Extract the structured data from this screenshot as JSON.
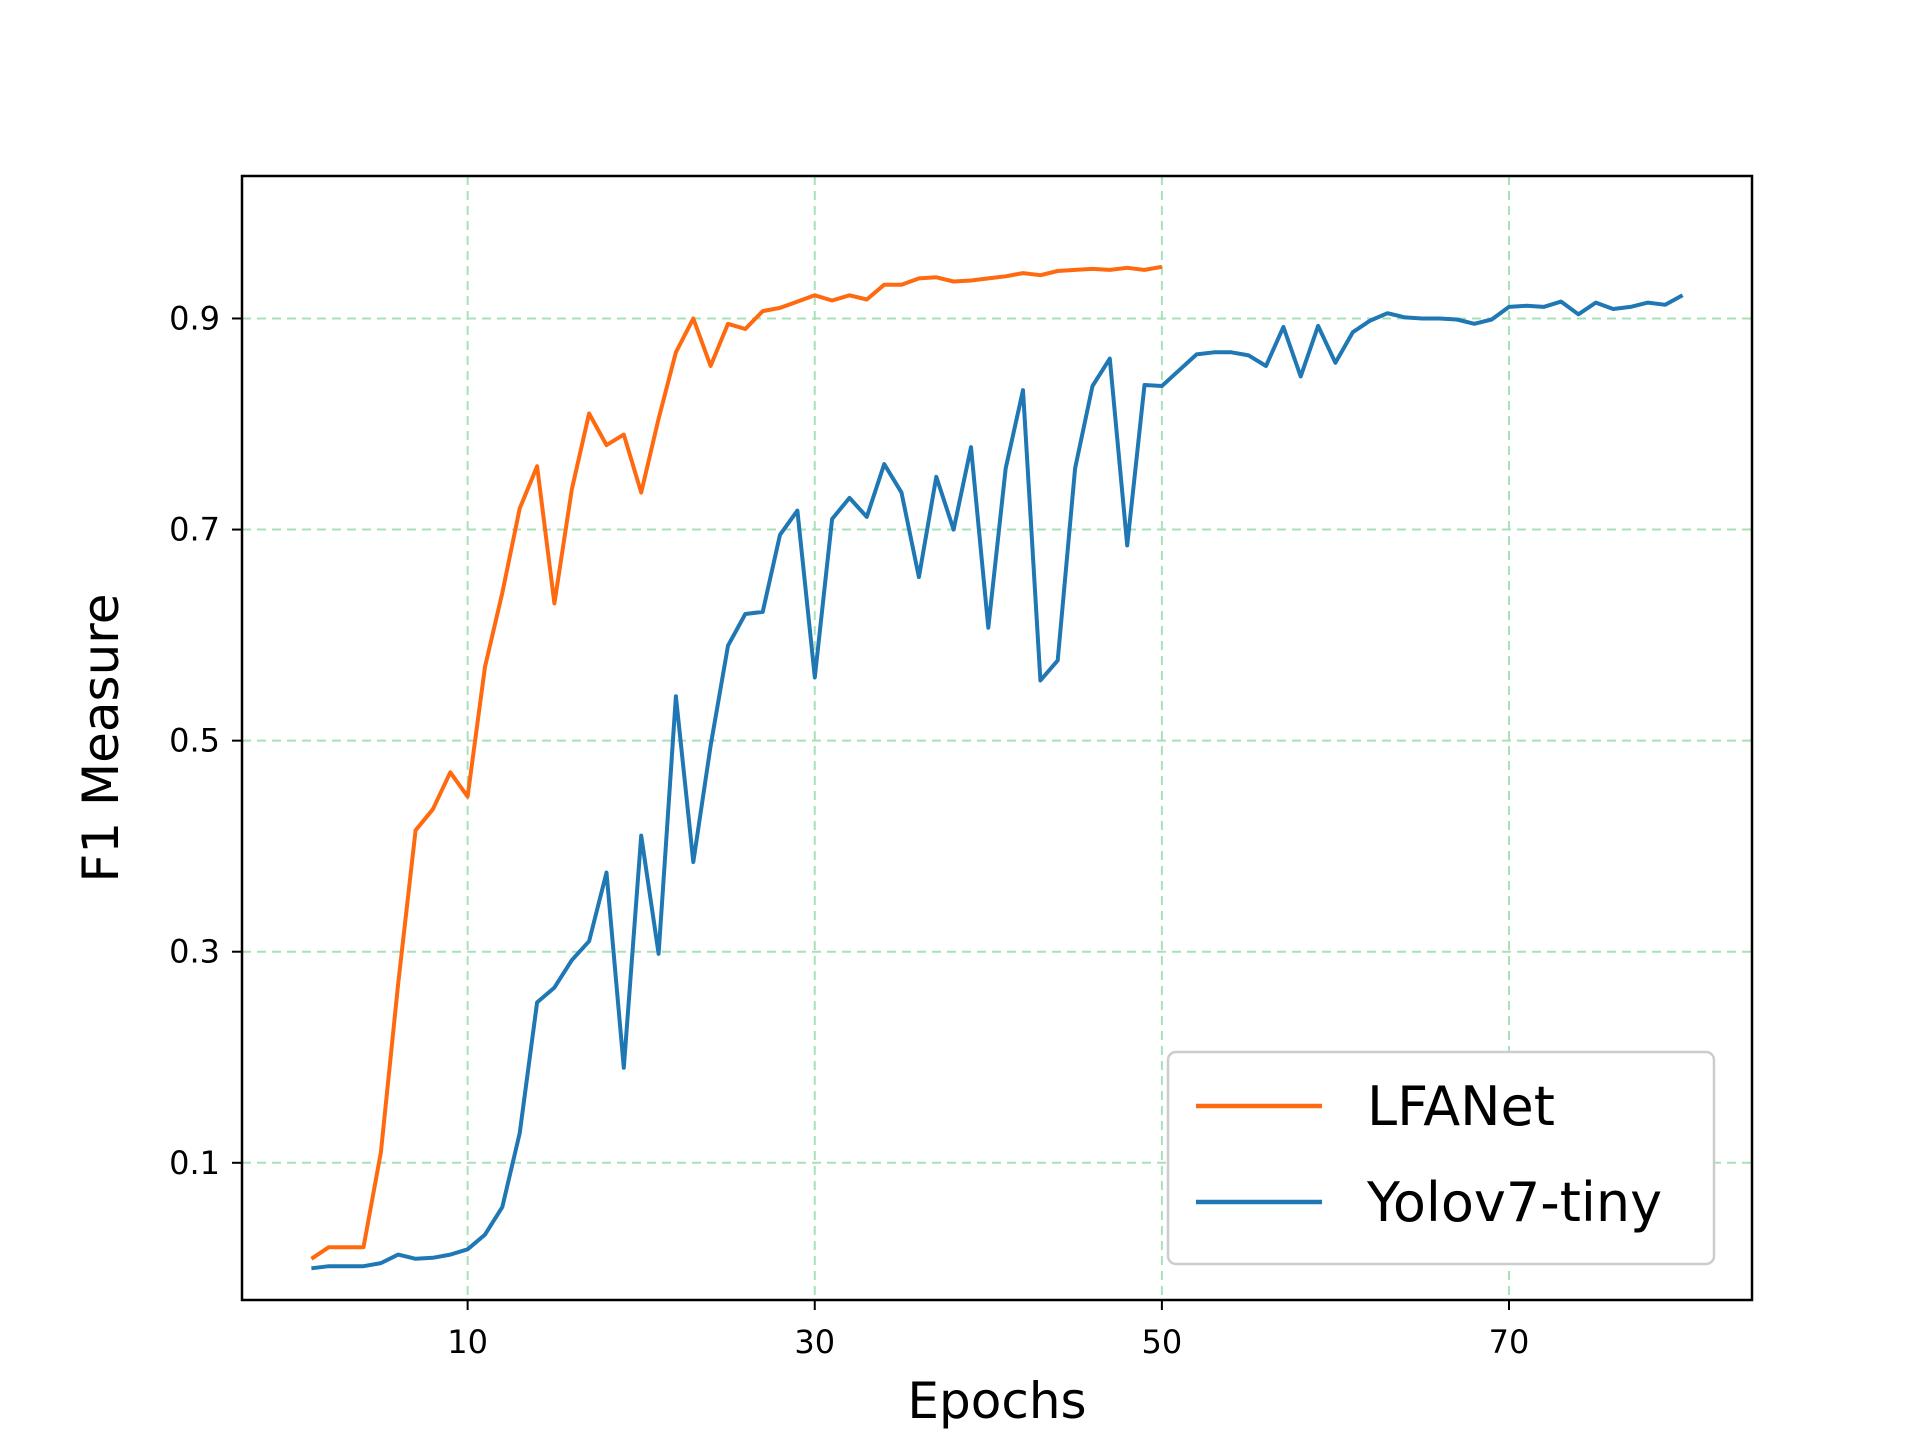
{
  "chart_data": {
    "type": "line",
    "xlabel": "Epochs",
    "ylabel": "F1 Measure",
    "xlim": [
      -3,
      84
    ],
    "ylim": [
      -0.03,
      1.035
    ],
    "xticks": [
      "10",
      "30",
      "50",
      "70"
    ],
    "yticks": [
      "0.1",
      "0.3",
      "0.5",
      "0.7",
      "0.9"
    ],
    "grid": true,
    "grid_color": "#a8e0b8",
    "legend_position": "lower right",
    "series": [
      {
        "name": "LFANet",
        "color": "#ff6a10",
        "x": [
          1,
          2,
          3,
          4,
          5,
          6,
          7,
          8,
          9,
          10,
          11,
          12,
          13,
          14,
          15,
          16,
          17,
          18,
          19,
          20,
          21,
          22,
          23,
          24,
          25,
          26,
          27,
          28,
          29,
          30,
          31,
          32,
          33,
          34,
          35,
          36,
          37,
          38,
          39,
          40,
          41,
          42,
          43,
          44,
          45,
          46,
          47,
          48,
          49,
          50
        ],
        "y": [
          0.009,
          0.02,
          0.02,
          0.02,
          0.11,
          0.27,
          0.415,
          0.435,
          0.47,
          0.447,
          0.57,
          0.64,
          0.72,
          0.76,
          0.63,
          0.738,
          0.81,
          0.78,
          0.79,
          0.735,
          0.805,
          0.868,
          0.9,
          0.855,
          0.895,
          0.89,
          0.907,
          0.91,
          0.916,
          0.922,
          0.917,
          0.922,
          0.918,
          0.932,
          0.932,
          0.938,
          0.939,
          0.935,
          0.936,
          0.938,
          0.94,
          0.943,
          0.941,
          0.945,
          0.946,
          0.947,
          0.946,
          0.948,
          0.946,
          0.949
        ]
      },
      {
        "name": "Yolov7-tiny",
        "color": "#1f77b4",
        "x": [
          1,
          2,
          3,
          4,
          5,
          6,
          7,
          8,
          9,
          10,
          11,
          12,
          13,
          14,
          15,
          16,
          17,
          18,
          19,
          20,
          21,
          22,
          23,
          24,
          25,
          26,
          27,
          28,
          29,
          30,
          31,
          32,
          33,
          34,
          35,
          36,
          37,
          38,
          39,
          40,
          41,
          42,
          43,
          44,
          45,
          46,
          47,
          48,
          49,
          50,
          51,
          52,
          53,
          54,
          55,
          56,
          57,
          58,
          59,
          60,
          61,
          62,
          63,
          64,
          65,
          66,
          67,
          68,
          69,
          70,
          71,
          72,
          73,
          74,
          75,
          76,
          77,
          78,
          79,
          80
        ],
        "y": [
          0.0,
          0.002,
          0.002,
          0.002,
          0.005,
          0.013,
          0.009,
          0.01,
          0.013,
          0.018,
          0.032,
          0.058,
          0.128,
          0.252,
          0.266,
          0.292,
          0.31,
          0.375,
          0.19,
          0.41,
          0.298,
          0.542,
          0.385,
          0.495,
          0.59,
          0.62,
          0.622,
          0.695,
          0.718,
          0.56,
          0.71,
          0.73,
          0.712,
          0.762,
          0.735,
          0.655,
          0.75,
          0.7,
          0.778,
          0.607,
          0.758,
          0.832,
          0.557,
          0.576,
          0.758,
          0.836,
          0.862,
          0.685,
          0.837,
          0.836,
          0.851,
          0.866,
          0.868,
          0.868,
          0.865,
          0.855,
          0.892,
          0.845,
          0.893,
          0.858,
          0.887,
          0.898,
          0.905,
          0.901,
          0.9,
          0.9,
          0.899,
          0.895,
          0.899,
          0.911,
          0.912,
          0.911,
          0.916,
          0.904,
          0.915,
          0.909,
          0.911,
          0.915,
          0.913,
          0.922
        ]
      }
    ]
  }
}
